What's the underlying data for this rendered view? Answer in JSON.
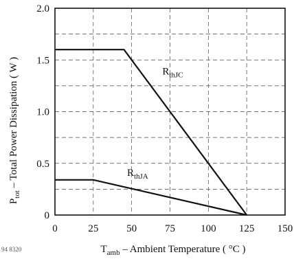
{
  "figure_id": "94 8320",
  "chart_data": {
    "type": "line",
    "title": "",
    "xlabel": {
      "pre": "T",
      "sub": "amb",
      "post": " – Ambient Temperature ( °C )"
    },
    "ylabel": {
      "pre": "P",
      "sub": "tot",
      "post": " – Total Power Dissipation ( W )"
    },
    "xlim": [
      0,
      150
    ],
    "ylim": [
      0,
      2.0
    ],
    "x_ticks": [
      0,
      25,
      50,
      75,
      100,
      125,
      150
    ],
    "x_tick_labels": [
      "0",
      "25",
      "50",
      "75",
      "100",
      "125",
      "150"
    ],
    "y_ticks": [
      0,
      0.5,
      1.0,
      1.5,
      2.0
    ],
    "y_tick_labels": [
      "0",
      "0.5",
      "1.0",
      "1.5",
      "2.0"
    ],
    "grid": true,
    "series": [
      {
        "label_main": "R",
        "label_sub": "thJC",
        "x": [
          0,
          45,
          125
        ],
        "y": [
          1.6,
          1.6,
          0
        ],
        "label_at": [
          70,
          1.36
        ]
      },
      {
        "label_main": "R",
        "label_sub": "thJA",
        "x": [
          0,
          25,
          125
        ],
        "y": [
          0.34,
          0.34,
          0
        ],
        "label_at": [
          47,
          0.38
        ]
      }
    ]
  }
}
